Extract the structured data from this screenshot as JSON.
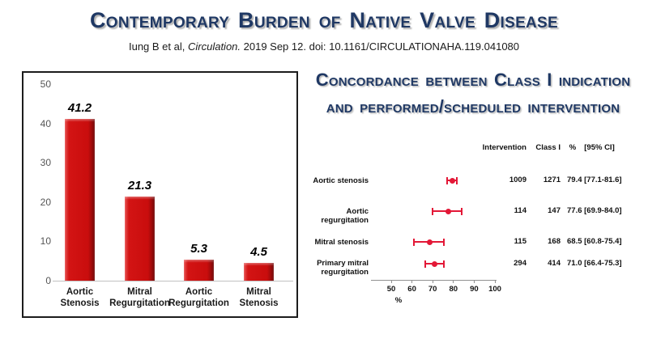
{
  "slide": {
    "title": "Contemporary Burden of Native Valve Disease",
    "citation": {
      "prefix": "Iung B et al, ",
      "journal": "Circulation.",
      "suffix": " 2019 Sep 12. doi: 10.1161/CIRCULATIONAHA.119.041080"
    },
    "right_title": {
      "line1": "Concordance between Class I indication",
      "line2": "and performed/scheduled intervention"
    },
    "colors": {
      "title_navy": "#1f3864",
      "bar_red": "#c90d0d",
      "forest_red": "#e31837"
    }
  },
  "chart_data": [
    {
      "type": "bar",
      "title": "",
      "xlabel": "",
      "ylabel": "",
      "categories": [
        [
          "Aortic",
          "Stenosis"
        ],
        [
          "Mitral",
          "Regurgitation"
        ],
        [
          "Aortic",
          "Regurgitation"
        ],
        [
          "Mitral",
          "Stenosis"
        ]
      ],
      "values": [
        41.2,
        21.3,
        5.3,
        4.5
      ],
      "value_labels": [
        "41.2",
        "21.3",
        "5.3",
        "4.5"
      ],
      "ylim": [
        0,
        50
      ],
      "yticks": [
        0,
        10,
        20,
        30,
        40,
        50
      ],
      "grid": false,
      "bar_color": "#c90d0d"
    },
    {
      "type": "scatter",
      "subtype": "forest",
      "title": "Concordance between Class I indication and performed/scheduled intervention",
      "xlabel": "%",
      "xlim": [
        50,
        100
      ],
      "xticks": [
        50,
        60,
        70,
        80,
        90,
        100
      ],
      "columns": [
        "Intervention",
        "Class I",
        "%",
        "[95% CI]"
      ],
      "rows": [
        {
          "label": [
            "Aortic stenosis"
          ],
          "intervention": "1009",
          "class_i": "1271",
          "pct": 79.4,
          "ci_low": 77.1,
          "ci_high": 81.6,
          "pct_ci_text": "79.4 [77.1-81.6]"
        },
        {
          "label": [
            "Aortic regurgitation"
          ],
          "intervention": "114",
          "class_i": "147",
          "pct": 77.6,
          "ci_low": 69.9,
          "ci_high": 84.0,
          "pct_ci_text": "77.6 [69.9-84.0]"
        },
        {
          "label": [
            "Mitral stenosis"
          ],
          "intervention": "115",
          "class_i": "168",
          "pct": 68.5,
          "ci_low": 60.8,
          "ci_high": 75.4,
          "pct_ci_text": "68.5 [60.8-75.4]"
        },
        {
          "label": [
            "Primary mitral",
            "regurgitation"
          ],
          "intervention": "294",
          "class_i": "414",
          "pct": 71.0,
          "ci_low": 66.4,
          "ci_high": 75.3,
          "pct_ci_text": "71.0 [66.4-75.3]"
        }
      ],
      "marker_color": "#e31837"
    }
  ]
}
